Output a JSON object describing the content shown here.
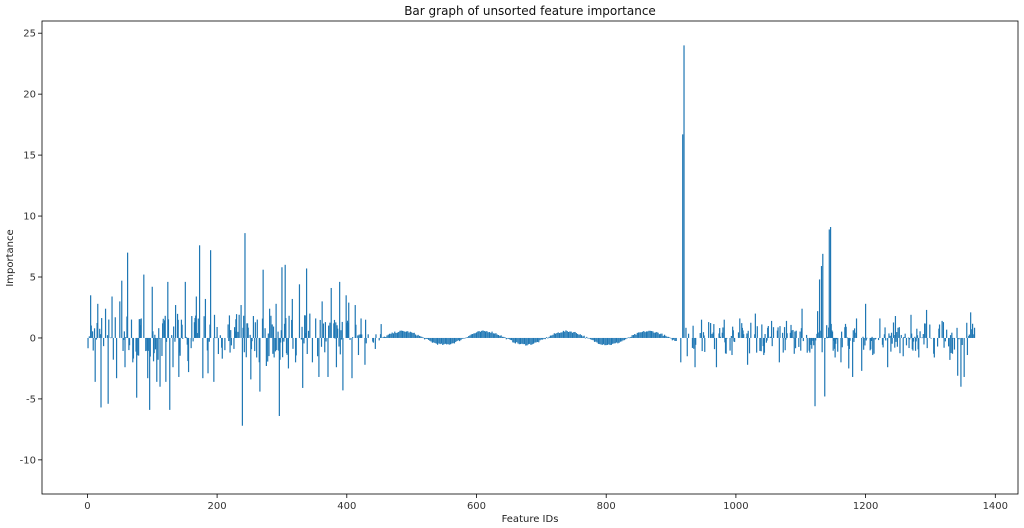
{
  "chart_data": {
    "type": "bar",
    "title": "Bar graph of unsorted feature importance",
    "xlabel": "Feature IDs",
    "ylabel": "Importance",
    "xlim": [
      -70,
      1435
    ],
    "ylim": [
      -12.8,
      26.0
    ],
    "x_ticks": [
      0,
      200,
      400,
      600,
      800,
      1000,
      1200,
      1400
    ],
    "y_ticks": [
      -10,
      -5,
      0,
      5,
      10,
      15,
      20,
      25
    ],
    "grid": false,
    "bar_color": "#1f77b4",
    "n_features": 1370,
    "features": [
      {
        "x": 5,
        "y": 3.5
      },
      {
        "x": 12,
        "y": -3.6
      },
      {
        "x": 16,
        "y": 2.8
      },
      {
        "x": 21,
        "y": -5.7
      },
      {
        "x": 28,
        "y": 2.4
      },
      {
        "x": 32,
        "y": -5.4
      },
      {
        "x": 38,
        "y": 3.4
      },
      {
        "x": 45,
        "y": -3.3
      },
      {
        "x": 50,
        "y": 3.0
      },
      {
        "x": 53,
        "y": 4.7
      },
      {
        "x": 58,
        "y": -2.4
      },
      {
        "x": 62,
        "y": 7.0
      },
      {
        "x": 70,
        "y": -2.0
      },
      {
        "x": 76,
        "y": -4.9
      },
      {
        "x": 83,
        "y": 1.6
      },
      {
        "x": 87,
        "y": 5.2
      },
      {
        "x": 93,
        "y": -3.3
      },
      {
        "x": 96,
        "y": -5.9
      },
      {
        "x": 100,
        "y": 4.2
      },
      {
        "x": 107,
        "y": -3.6
      },
      {
        "x": 112,
        "y": -4.0
      },
      {
        "x": 116,
        "y": 1.2
      },
      {
        "x": 121,
        "y": -3.6
      },
      {
        "x": 124,
        "y": 4.6
      },
      {
        "x": 127,
        "y": -5.9
      },
      {
        "x": 132,
        "y": -2.4
      },
      {
        "x": 136,
        "y": 2.7
      },
      {
        "x": 141,
        "y": -3.2
      },
      {
        "x": 145,
        "y": 1.5
      },
      {
        "x": 151,
        "y": 4.6
      },
      {
        "x": 156,
        "y": -2.8
      },
      {
        "x": 161,
        "y": 1.8
      },
      {
        "x": 168,
        "y": 3.4
      },
      {
        "x": 173,
        "y": 7.6
      },
      {
        "x": 178,
        "y": -3.3
      },
      {
        "x": 182,
        "y": 3.2
      },
      {
        "x": 186,
        "y": -2.9
      },
      {
        "x": 190,
        "y": 7.2
      },
      {
        "x": 195,
        "y": -3.6
      },
      {
        "x": 200,
        "y": 0.9
      },
      {
        "x": 207,
        "y": -0.8
      },
      {
        "x": 212,
        "y": -1.0
      },
      {
        "x": 220,
        "y": -1.2
      },
      {
        "x": 226,
        "y": -0.9
      },
      {
        "x": 232,
        "y": 0.5
      },
      {
        "x": 237,
        "y": 2.7
      },
      {
        "x": 239,
        "y": -7.2
      },
      {
        "x": 243,
        "y": 8.6
      },
      {
        "x": 247,
        "y": 1.2
      },
      {
        "x": 252,
        "y": -3.4
      },
      {
        "x": 256,
        "y": 1.8
      },
      {
        "x": 261,
        "y": -1.6
      },
      {
        "x": 266,
        "y": -4.4
      },
      {
        "x": 271,
        "y": 5.6
      },
      {
        "x": 276,
        "y": -2.3
      },
      {
        "x": 281,
        "y": 2.4
      },
      {
        "x": 286,
        "y": -1.3
      },
      {
        "x": 291,
        "y": 2.8
      },
      {
        "x": 296,
        "y": -6.4
      },
      {
        "x": 300,
        "y": 5.8
      },
      {
        "x": 305,
        "y": 6.0
      },
      {
        "x": 310,
        "y": -2.5
      },
      {
        "x": 316,
        "y": 3.2
      },
      {
        "x": 321,
        "y": -2.0
      },
      {
        "x": 327,
        "y": 4.4
      },
      {
        "x": 332,
        "y": -4.1
      },
      {
        "x": 338,
        "y": 5.7
      },
      {
        "x": 343,
        "y": 2.0
      },
      {
        "x": 347,
        "y": -2.0
      },
      {
        "x": 352,
        "y": 1.6
      },
      {
        "x": 357,
        "y": -3.2
      },
      {
        "x": 362,
        "y": 3.0
      },
      {
        "x": 367,
        "y": 1.3
      },
      {
        "x": 371,
        "y": -3.2
      },
      {
        "x": 376,
        "y": 4.1
      },
      {
        "x": 380,
        "y": 1.2
      },
      {
        "x": 384,
        "y": -2.4
      },
      {
        "x": 389,
        "y": 4.6
      },
      {
        "x": 394,
        "y": -4.3
      },
      {
        "x": 399,
        "y": 3.5
      },
      {
        "x": 403,
        "y": 2.9
      },
      {
        "x": 408,
        "y": -3.3
      },
      {
        "x": 413,
        "y": 2.7
      },
      {
        "x": 418,
        "y": -1.4
      },
      {
        "x": 422,
        "y": 1.6
      },
      {
        "x": 428,
        "y": -2.2
      },
      {
        "x": 433,
        "y": 0.3
      },
      {
        "x": 440,
        "y": -0.3
      },
      {
        "x": 445,
        "y": 0.3
      },
      {
        "x": 450,
        "y": -0.2
      },
      {
        "x": 918,
        "y": 16.7
      },
      {
        "x": 920,
        "y": 24.0
      },
      {
        "x": 915,
        "y": -2.0
      },
      {
        "x": 925,
        "y": -1.5
      },
      {
        "x": 937,
        "y": -2.4
      },
      {
        "x": 947,
        "y": 1.5
      },
      {
        "x": 958,
        "y": 1.3
      },
      {
        "x": 970,
        "y": -2.4
      },
      {
        "x": 982,
        "y": 1.5
      },
      {
        "x": 994,
        "y": -1.4
      },
      {
        "x": 1006,
        "y": 1.6
      },
      {
        "x": 1018,
        "y": -2.2
      },
      {
        "x": 1030,
        "y": 2.0
      },
      {
        "x": 1043,
        "y": -1.4
      },
      {
        "x": 1055,
        "y": 1.4
      },
      {
        "x": 1067,
        "y": -2.0
      },
      {
        "x": 1078,
        "y": 1.4
      },
      {
        "x": 1090,
        "y": -1.3
      },
      {
        "x": 1102,
        "y": 2.4
      },
      {
        "x": 1114,
        "y": -1.2
      },
      {
        "x": 1122,
        "y": -5.6
      },
      {
        "x": 1126,
        "y": 2.2
      },
      {
        "x": 1129,
        "y": 4.8
      },
      {
        "x": 1132,
        "y": 5.9
      },
      {
        "x": 1134,
        "y": 6.9
      },
      {
        "x": 1137,
        "y": -4.8
      },
      {
        "x": 1144,
        "y": 8.9
      },
      {
        "x": 1146,
        "y": 9.1
      },
      {
        "x": 1153,
        "y": -1.6
      },
      {
        "x": 1162,
        "y": -2.0
      },
      {
        "x": 1174,
        "y": -2.5
      },
      {
        "x": 1180,
        "y": -3.2
      },
      {
        "x": 1186,
        "y": 1.6
      },
      {
        "x": 1194,
        "y": -2.7
      },
      {
        "x": 1200,
        "y": 2.8
      },
      {
        "x": 1211,
        "y": -1.4
      },
      {
        "x": 1222,
        "y": 1.6
      },
      {
        "x": 1234,
        "y": -2.4
      },
      {
        "x": 1246,
        "y": 1.8
      },
      {
        "x": 1258,
        "y": -1.5
      },
      {
        "x": 1270,
        "y": 1.9
      },
      {
        "x": 1282,
        "y": -1.6
      },
      {
        "x": 1294,
        "y": 2.3
      },
      {
        "x": 1306,
        "y": -1.6
      },
      {
        "x": 1318,
        "y": 1.4
      },
      {
        "x": 1330,
        "y": -1.8
      },
      {
        "x": 1342,
        "y": -3.1
      },
      {
        "x": 1347,
        "y": -4.0
      },
      {
        "x": 1352,
        "y": -3.2
      },
      {
        "x": 1357,
        "y": -1.4
      },
      {
        "x": 1362,
        "y": 2.1
      },
      {
        "x": 1366,
        "y": 0.3
      }
    ]
  }
}
